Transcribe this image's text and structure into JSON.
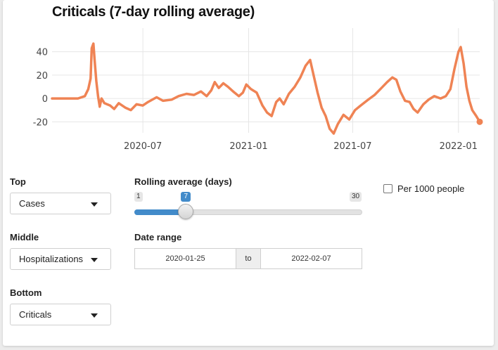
{
  "chart_data": {
    "type": "line",
    "title": "Criticals (7-day rolling average)",
    "xlabel": "",
    "ylabel": "",
    "x_range": [
      "2020-01-25",
      "2022-02-07"
    ],
    "ylim": [
      -27,
      53
    ],
    "y_ticks": [
      40,
      20,
      0,
      -20
    ],
    "x_ticks": [
      {
        "date": "2020-07-01",
        "label": "2020-07"
      },
      {
        "date": "2021-01-01",
        "label": "2021-01"
      },
      {
        "date": "2021-07-01",
        "label": "2021-07"
      },
      {
        "date": "2022-01-01",
        "label": "2022-01"
      }
    ],
    "grid": true,
    "line_color": "#ef8354",
    "series": [
      {
        "values": [
          [
            "2020-01-25",
            0
          ],
          [
            "2020-02-20",
            0
          ],
          [
            "2020-03-10",
            0
          ],
          [
            "2020-03-22",
            2
          ],
          [
            "2020-03-28",
            8
          ],
          [
            "2020-04-01",
            17
          ],
          [
            "2020-04-03",
            43
          ],
          [
            "2020-04-06",
            47
          ],
          [
            "2020-04-08",
            33
          ],
          [
            "2020-04-11",
            15
          ],
          [
            "2020-04-14",
            2
          ],
          [
            "2020-04-17",
            -7
          ],
          [
            "2020-04-20",
            0
          ],
          [
            "2020-04-25",
            -4
          ],
          [
            "2020-05-05",
            -6
          ],
          [
            "2020-05-12",
            -9
          ],
          [
            "2020-05-20",
            -4
          ],
          [
            "2020-06-01",
            -8
          ],
          [
            "2020-06-10",
            -10
          ],
          [
            "2020-06-20",
            -5
          ],
          [
            "2020-07-01",
            -6
          ],
          [
            "2020-07-10",
            -3
          ],
          [
            "2020-07-25",
            1
          ],
          [
            "2020-08-05",
            -2
          ],
          [
            "2020-08-20",
            -1
          ],
          [
            "2020-09-01",
            2
          ],
          [
            "2020-09-15",
            4
          ],
          [
            "2020-09-28",
            3
          ],
          [
            "2020-10-10",
            6
          ],
          [
            "2020-10-20",
            2
          ],
          [
            "2020-10-28",
            7
          ],
          [
            "2020-11-03",
            14
          ],
          [
            "2020-11-10",
            9
          ],
          [
            "2020-11-18",
            13
          ],
          [
            "2020-11-26",
            10
          ],
          [
            "2020-12-05",
            6
          ],
          [
            "2020-12-15",
            2
          ],
          [
            "2020-12-22",
            5
          ],
          [
            "2020-12-28",
            12
          ],
          [
            "2021-01-05",
            8
          ],
          [
            "2021-01-15",
            5
          ],
          [
            "2021-01-25",
            -6
          ],
          [
            "2021-02-02",
            -12
          ],
          [
            "2021-02-10",
            -15
          ],
          [
            "2021-02-18",
            -3
          ],
          [
            "2021-02-24",
            0
          ],
          [
            "2021-03-03",
            -5
          ],
          [
            "2021-03-12",
            4
          ],
          [
            "2021-03-22",
            10
          ],
          [
            "2021-04-01",
            18
          ],
          [
            "2021-04-10",
            28
          ],
          [
            "2021-04-18",
            33
          ],
          [
            "2021-04-24",
            20
          ],
          [
            "2021-05-01",
            5
          ],
          [
            "2021-05-08",
            -8
          ],
          [
            "2021-05-15",
            -15
          ],
          [
            "2021-05-22",
            -26
          ],
          [
            "2021-05-29",
            -30
          ],
          [
            "2021-06-05",
            -22
          ],
          [
            "2021-06-15",
            -14
          ],
          [
            "2021-06-25",
            -18
          ],
          [
            "2021-07-05",
            -10
          ],
          [
            "2021-07-15",
            -6
          ],
          [
            "2021-07-28",
            -1
          ],
          [
            "2021-08-08",
            3
          ],
          [
            "2021-08-20",
            9
          ],
          [
            "2021-08-30",
            14
          ],
          [
            "2021-09-08",
            18
          ],
          [
            "2021-09-15",
            16
          ],
          [
            "2021-09-22",
            6
          ],
          [
            "2021-09-30",
            -2
          ],
          [
            "2021-10-08",
            -3
          ],
          [
            "2021-10-15",
            -9
          ],
          [
            "2021-10-22",
            -12
          ],
          [
            "2021-11-01",
            -5
          ],
          [
            "2021-11-10",
            -1
          ],
          [
            "2021-11-20",
            2
          ],
          [
            "2021-12-01",
            0
          ],
          [
            "2021-12-10",
            2
          ],
          [
            "2021-12-18",
            8
          ],
          [
            "2021-12-25",
            25
          ],
          [
            "2022-01-01",
            40
          ],
          [
            "2022-01-05",
            44
          ],
          [
            "2022-01-10",
            30
          ],
          [
            "2022-01-15",
            10
          ],
          [
            "2022-01-20",
            -2
          ],
          [
            "2022-01-25",
            -10
          ],
          [
            "2022-02-01",
            -15
          ],
          [
            "2022-02-07",
            -20
          ]
        ]
      }
    ]
  },
  "controls": {
    "top_label": "Top",
    "top_value": "Cases",
    "middle_label": "Middle",
    "middle_value": "Hospitalizations",
    "bottom_label": "Bottom",
    "bottom_value": "Criticals",
    "rolling_label": "Rolling average (days)",
    "rolling_min": "1",
    "rolling_max": "30",
    "rolling_value": "7",
    "rolling_min_num": 1,
    "rolling_max_num": 30,
    "rolling_value_num": 7,
    "date_label": "Date range",
    "date_start": "2020-01-25",
    "date_sep": "to",
    "date_end": "2022-02-07",
    "per_1000_label": "Per 1000 people",
    "per_1000_checked": false
  },
  "colors": {
    "accent": "#428bca",
    "line": "#ef8354"
  }
}
